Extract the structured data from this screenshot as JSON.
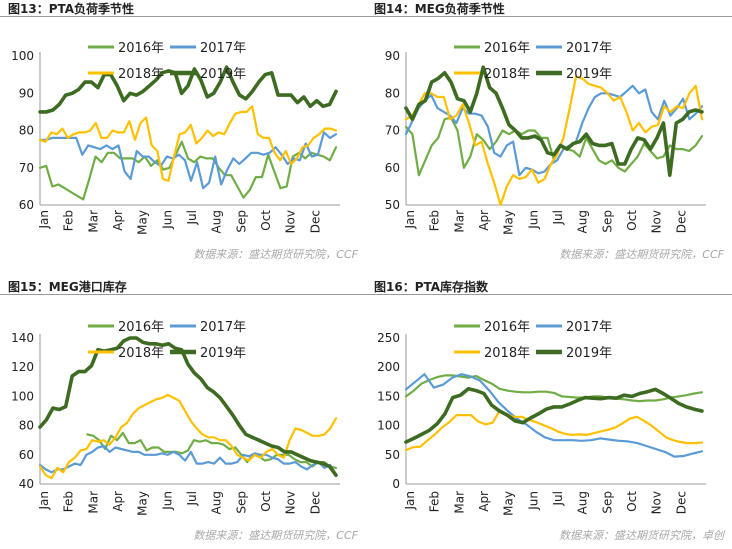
{
  "colors": {
    "y2016": "#70ad47",
    "y2017": "#5b9bd5",
    "y2018": "#ffc000",
    "y2019": "#3d6b21"
  },
  "source_text": "数据来源：盛达期货研究院，CCF",
  "source_text_4": "数据来源：盛达期货研究院，卓创",
  "chart_data": [
    {
      "type": "line",
      "title": "图13：PTA负荷季节性",
      "xlabels": [
        "Jan",
        "Feb",
        "Mar",
        "Apr",
        "May",
        "Jun",
        "Jul",
        "Aug",
        "Sep",
        "Oct",
        "Nov",
        "Dec"
      ],
      "ylim": [
        60,
        100
      ],
      "yticks": [
        60,
        70,
        80,
        90,
        100
      ],
      "series": [
        {
          "name": "2016年",
          "values": [
            70,
            70.5,
            65,
            65.5,
            64.5,
            63.5,
            62.5,
            61.5,
            67,
            73,
            71.5,
            74,
            74,
            72.5,
            72.5,
            72.5,
            71.5,
            73,
            70.5,
            72,
            69.5,
            70,
            73.5,
            77,
            72.5,
            71.5,
            73,
            72.5,
            72.5,
            70,
            68,
            68,
            65,
            62,
            64,
            67.5,
            67.5,
            73.5,
            69,
            64.5,
            65,
            73,
            74,
            72.5,
            74,
            73.5,
            73,
            72,
            75.5
          ]
        },
        {
          "name": "2017年",
          "values": [
            77.5,
            77.5,
            78,
            78,
            78,
            78,
            78,
            73.5,
            76,
            75.5,
            75,
            76,
            75,
            76,
            69,
            67,
            74.5,
            73,
            73,
            71.5,
            70.5,
            73,
            72.5,
            73.5,
            72,
            66.5,
            71.5,
            64.5,
            66,
            73,
            65.5,
            69.5,
            72.5,
            71,
            72.5,
            74,
            74,
            73.5,
            74,
            75.5,
            73.5,
            71,
            72.5,
            72,
            76.5,
            73,
            73.5,
            79.5,
            78,
            79
          ]
        },
        {
          "name": "2018年",
          "values": [
            77.5,
            77,
            79.5,
            79,
            80.5,
            78,
            79,
            79.5,
            79.5,
            80,
            82,
            78,
            78,
            80,
            79.5,
            79.5,
            82.5,
            77.5,
            82,
            83.5,
            76,
            74.5,
            67,
            66.5,
            73,
            79,
            79.5,
            81.5,
            76.5,
            78,
            80,
            78.5,
            79.5,
            79,
            82,
            84.5,
            85,
            85,
            86.5,
            79,
            78,
            78,
            74,
            72,
            74.5,
            71,
            72.5,
            75.5,
            76,
            78,
            79,
            80.5,
            80.5,
            80
          ]
        },
        {
          "name": "2019年",
          "values": [
            85,
            85,
            85.5,
            87,
            89.5,
            90,
            91,
            93,
            93,
            91.5,
            95,
            95,
            92,
            88,
            90,
            89.5,
            90.5,
            92,
            93.5,
            95.5,
            96,
            95.5,
            90,
            92,
            96.5,
            93.5,
            89,
            90,
            93,
            97,
            93,
            89.5,
            88.5,
            90.5,
            93,
            95,
            95.5,
            89.5,
            89.5,
            89.5,
            87.5,
            89,
            86.5,
            88,
            86.5,
            87,
            90.5
          ]
        }
      ]
    },
    {
      "type": "line",
      "title": "图14：MEG负荷季节性",
      "xlabels": [
        "Jan",
        "Feb",
        "Mar",
        "Apr",
        "May",
        "Jun",
        "Jul",
        "Aug",
        "Sep",
        "Oct",
        "Nov",
        "Dec"
      ],
      "ylim": [
        50,
        90
      ],
      "yticks": [
        50,
        60,
        70,
        80,
        90
      ],
      "series": [
        {
          "name": "2016年",
          "values": [
            71,
            69,
            58,
            62,
            66,
            68,
            73,
            73.5,
            70,
            60,
            63,
            69,
            67.5,
            65,
            67,
            70,
            69,
            70,
            69,
            70,
            70,
            68,
            68,
            62,
            66,
            65,
            64.5,
            63,
            68,
            65,
            62,
            61,
            62,
            60,
            59,
            61,
            63,
            66.5,
            64.5,
            62.5,
            63,
            66,
            65,
            65,
            64.5,
            66,
            68.5
          ]
        },
        {
          "name": "2017年",
          "values": [
            69,
            72.5,
            76,
            78,
            79.5,
            76,
            75,
            74,
            72,
            76,
            74.5,
            74.5,
            74,
            71,
            64,
            63,
            66,
            67,
            58,
            60,
            59.5,
            58.5,
            59,
            61,
            62,
            65,
            66,
            67,
            72,
            76,
            79,
            80,
            80,
            79.5,
            79,
            80.5,
            82,
            80,
            81,
            75,
            73,
            78,
            74,
            76,
            78.5,
            73,
            74.5,
            76.5
          ]
        },
        {
          "name": "2018年",
          "values": [
            73,
            74,
            77,
            80,
            80,
            79,
            79,
            73,
            74,
            77,
            72,
            66,
            67,
            61,
            56,
            50,
            55,
            58,
            57,
            57.5,
            59.5,
            56,
            57,
            61,
            63.5,
            68,
            76,
            84.5,
            84,
            82.5,
            82,
            81.5,
            80,
            78,
            79,
            75,
            70,
            72,
            69.5,
            71,
            71.5,
            76.5,
            75,
            76.5,
            76,
            80,
            82,
            73
          ]
        },
        {
          "name": "2019年",
          "values": [
            76,
            73,
            77,
            78,
            83,
            84,
            85.5,
            83,
            78.5,
            78,
            75,
            80,
            87,
            81.5,
            80,
            76,
            71.5,
            70,
            68,
            68,
            68.5,
            67.5,
            64,
            63.5,
            66,
            65,
            66.5,
            67,
            69,
            66.5,
            66,
            66,
            66.5,
            61,
            61,
            65,
            68,
            67.5,
            65,
            68,
            72,
            58,
            72,
            73,
            75,
            75.5,
            75
          ]
        }
      ]
    },
    {
      "type": "line",
      "title": "图15：MEG港口库存",
      "xlabels": [
        "Jan",
        "Feb",
        "Mar",
        "Apr",
        "May",
        "Jun",
        "Jul",
        "Aug",
        "Sep",
        "Oct",
        "Nov",
        "Dec"
      ],
      "ylim": [
        40,
        140
      ],
      "yticks": [
        40,
        60,
        80,
        100,
        120,
        140
      ],
      "series": [
        {
          "name": "2016年",
          "values": [
            null,
            null,
            null,
            null,
            null,
            null,
            null,
            null,
            74,
            73,
            70,
            64,
            73,
            70,
            75,
            68,
            68,
            70,
            63,
            65,
            65,
            62,
            62,
            62,
            61,
            63,
            70,
            69,
            70,
            68,
            68,
            67,
            64,
            65,
            60,
            55,
            60,
            59,
            56,
            57,
            60,
            60,
            60,
            57,
            55,
            55,
            52,
            55,
            55,
            52,
            51
          ]
        },
        {
          "name": "2017年",
          "values": [
            53,
            50,
            48,
            50,
            50,
            52,
            54,
            53,
            60,
            62,
            65,
            66,
            62,
            65,
            64,
            63,
            62,
            62,
            60,
            60,
            60,
            61,
            60,
            62,
            60,
            56,
            62,
            54,
            54,
            55,
            54,
            58,
            54,
            54,
            55,
            60,
            59,
            61,
            60,
            60,
            58,
            57,
            54,
            54,
            55,
            52,
            50,
            53,
            55,
            51,
            53,
            46
          ]
        },
        {
          "name": "2018年",
          "values": [
            52,
            46,
            44,
            51,
            48,
            55,
            58,
            63,
            64,
            70,
            69,
            70,
            67,
            72,
            79,
            82,
            88,
            92,
            94,
            96,
            98,
            99,
            101,
            99,
            97,
            90,
            83,
            78,
            74,
            72,
            72,
            70,
            70,
            66,
            60,
            58,
            56,
            60,
            58,
            62,
            64,
            60,
            58,
            70,
            78,
            77,
            75,
            73,
            73,
            74,
            78,
            85
          ]
        },
        {
          "name": "2019年",
          "values": [
            79,
            84,
            92,
            91,
            93,
            114,
            117,
            117,
            121,
            132,
            131,
            132,
            133,
            138,
            140,
            140,
            137,
            136,
            136,
            135,
            136,
            133,
            132,
            122,
            116,
            112,
            106,
            103,
            99,
            93,
            87,
            80,
            74,
            72,
            70,
            68,
            66,
            65,
            62,
            62,
            60,
            58,
            56,
            55,
            54,
            52,
            46
          ]
        }
      ]
    },
    {
      "type": "line",
      "title": "图16：PTA库存指数",
      "xlabels": [
        "Jan",
        "Feb",
        "Mar",
        "Apr",
        "May",
        "Jun",
        "Jul",
        "Aug",
        "Sep",
        "Oct",
        "Nov",
        "Dec"
      ],
      "ylim": [
        0,
        250
      ],
      "yticks": [
        0,
        50,
        100,
        150,
        200,
        250
      ],
      "series": [
        {
          "name": "2016年",
          "values": [
            150,
            160,
            172,
            178,
            183,
            186,
            186,
            184,
            182,
            185,
            178,
            172,
            163,
            160,
            158,
            157,
            157,
            158,
            158,
            156,
            150,
            149,
            148,
            148,
            150,
            150,
            148,
            146,
            145,
            143,
            142,
            143,
            143,
            145,
            148,
            150,
            152,
            155,
            157
          ]
        },
        {
          "name": "2017年",
          "values": [
            162,
            175,
            188,
            165,
            170,
            182,
            188,
            184,
            177,
            160,
            140,
            125,
            112,
            102,
            90,
            80,
            75,
            75,
            75,
            74,
            75,
            78,
            76,
            74,
            73,
            70,
            65,
            60,
            55,
            47,
            48,
            52,
            56
          ]
        },
        {
          "name": "2018年",
          "values": [
            58,
            63,
            64,
            75,
            85,
            97,
            106,
            118,
            118,
            118,
            107,
            102,
            105,
            126,
            118,
            115,
            115,
            110,
            106,
            101,
            96,
            90,
            86,
            84,
            85,
            84,
            87,
            90,
            93,
            97,
            104,
            112,
            115,
            108,
            100,
            90,
            80,
            75,
            72,
            70,
            70,
            71
          ]
        },
        {
          "name": "2019年",
          "values": [
            72,
            78,
            85,
            92,
            103,
            120,
            148,
            152,
            163,
            160,
            155,
            135,
            125,
            118,
            108,
            105,
            113,
            120,
            128,
            132,
            132,
            137,
            143,
            148,
            147,
            146,
            148,
            147,
            152,
            150,
            155,
            158,
            162,
            155,
            147,
            138,
            132,
            128,
            125
          ]
        }
      ]
    }
  ]
}
